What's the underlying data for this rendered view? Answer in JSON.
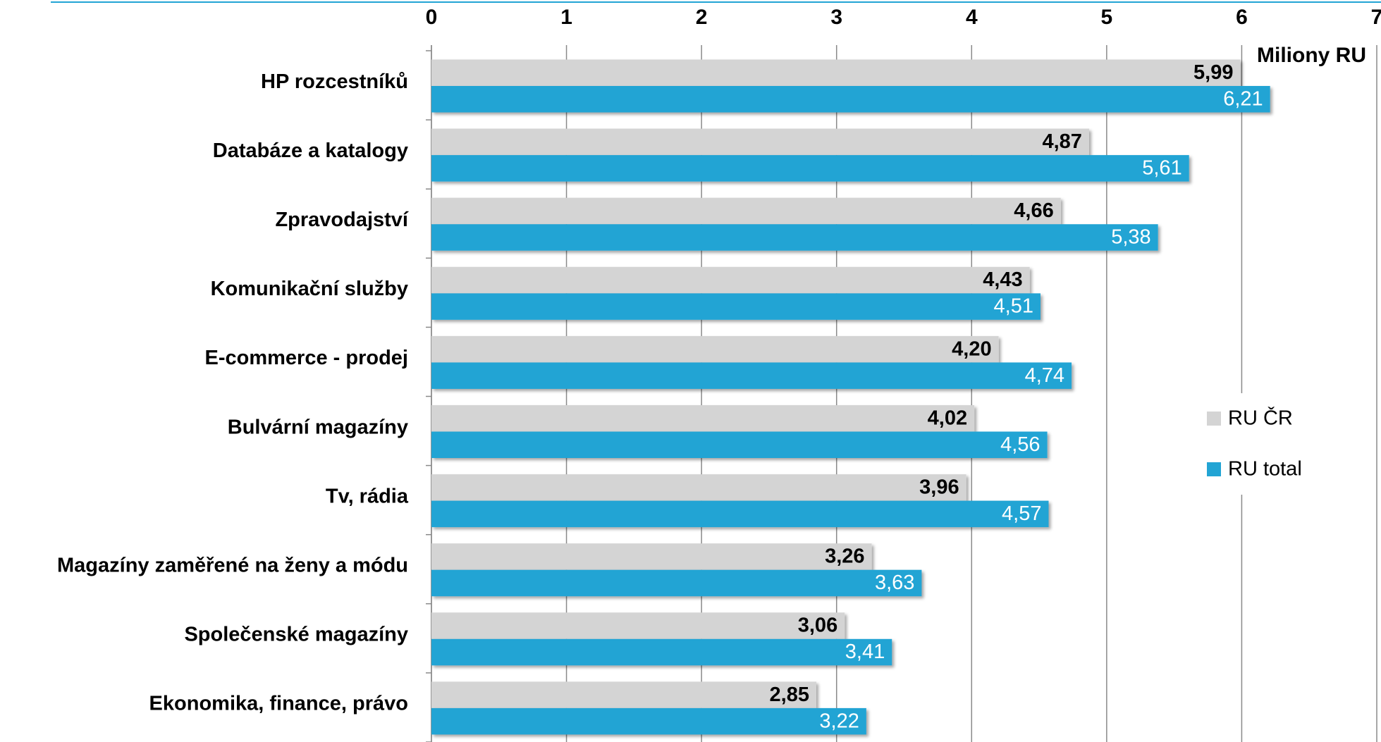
{
  "chart_data": {
    "type": "bar",
    "orientation": "horizontal",
    "x_label": "Miliony RU",
    "categories": [
      "HP rozcestníků",
      "Databáze a katalogy",
      "Zpravodajství",
      "Komunikační služby",
      "E-commerce - prodej",
      "Bulvární magazíny",
      "Tv, rádia",
      "Magazíny zaměřené na ženy a módu",
      "Společenské magazíny",
      "Ekonomika, finance, právo"
    ],
    "series": [
      {
        "name": "RU ČR",
        "color": "#d4d4d4",
        "values": [
          5.99,
          4.87,
          4.66,
          4.43,
          4.2,
          4.02,
          3.96,
          3.26,
          3.06,
          2.85
        ],
        "value_labels": [
          "5,99",
          "4,87",
          "4,66",
          "4,43",
          "4,20",
          "4,02",
          "3,96",
          "3,26",
          "3,06",
          "2,85"
        ]
      },
      {
        "name": "RU total",
        "color": "#22a4d4",
        "values": [
          6.21,
          5.61,
          5.38,
          4.51,
          4.74,
          4.56,
          4.57,
          3.63,
          3.41,
          3.22
        ],
        "value_labels": [
          "6,21",
          "5,61",
          "5,38",
          "4,51",
          "4,74",
          "4,56",
          "4,57",
          "3,63",
          "3,41",
          "3,22"
        ]
      }
    ],
    "xlim": [
      0,
      7
    ],
    "xticks": [
      0,
      1,
      2,
      3,
      4,
      5,
      6,
      7
    ],
    "grid": true,
    "legend": "right"
  }
}
